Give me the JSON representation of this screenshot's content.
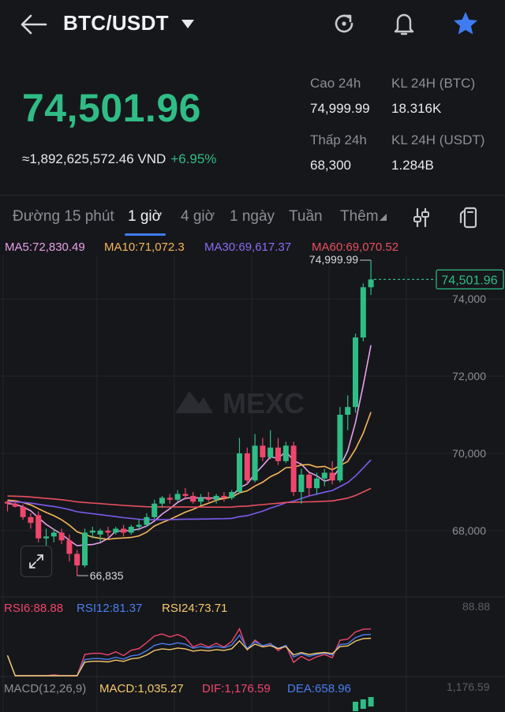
{
  "header": {
    "pair": "BTC/USDT",
    "back_icon": "arrow-left-icon",
    "dropdown_icon": "caret-down-icon",
    "refresh_icon": "refresh-icon",
    "alert_icon": "bell-icon",
    "favorite_icon": "star-icon"
  },
  "price": {
    "last": "74,501.96",
    "vnd": "≈1,892,625,572.46 VND",
    "change": "+6.95%"
  },
  "stats": {
    "high_label": "Cao 24h",
    "high_value": "74,999.99",
    "low_label": "Thấp 24h",
    "low_value": "68,300",
    "vol_btc_label": "KL 24H (BTC)",
    "vol_btc_value": "18.316K",
    "vol_usdt_label": "KL 24H  (USDT)",
    "vol_usdt_value": "1.284B"
  },
  "tabs": [
    {
      "label": "Đường 15 phút"
    },
    {
      "label": "1 giờ"
    },
    {
      "label": "4 giờ"
    },
    {
      "label": "1 ngày"
    },
    {
      "label": "Tuần"
    },
    {
      "label": "Thêm"
    }
  ],
  "tool_icons": {
    "indicator": "sliders-icon",
    "fullscreen": "rotate-screen-icon",
    "expand": "expand-icon"
  },
  "ma_legend": {
    "ma5": "MA5:72,830.49",
    "ma10": "MA10:71,072.3",
    "ma30": "MA30:69,617.37",
    "ma60": "MA60:69,070.52"
  },
  "colors": {
    "up": "#2fbd85",
    "down": "#f0466c",
    "ma5": "#e6a0e8",
    "ma10": "#f5b55a",
    "ma30": "#7c5cf0",
    "ma60": "#e8505e",
    "rsi6": "#f0466c",
    "rsi12": "#4a7ef0",
    "rsi24": "#f5c86a"
  },
  "chart_data": {
    "type": "candlestick",
    "interval": "1 giờ",
    "y_ticks": [
      "74,000",
      "72,000",
      "70,000",
      "68,000"
    ],
    "y_tick_values": [
      74000,
      72000,
      70000,
      68000
    ],
    "high_marker": "74,999.99",
    "low_marker": "66,835",
    "last_price_tag": "74,501.96",
    "watermark": "MEXC",
    "candles": [
      [
        68750,
        68780,
        68500,
        68700
      ],
      [
        68700,
        68800,
        68600,
        68620
      ],
      [
        68620,
        68680,
        68280,
        68350
      ],
      [
        68350,
        68450,
        68050,
        68200
      ],
      [
        68400,
        68500,
        67700,
        67800
      ],
      [
        67800,
        68050,
        67500,
        67850
      ],
      [
        67850,
        68050,
        67700,
        67950
      ],
      [
        67950,
        68050,
        67650,
        67750
      ],
      [
        67750,
        67900,
        67200,
        67400
      ],
      [
        67400,
        67500,
        66835,
        67100
      ],
      [
        67100,
        68050,
        67050,
        67950
      ],
      [
        67950,
        68100,
        67800,
        68000
      ],
      [
        67900,
        68050,
        67700,
        68000
      ],
      [
        68000,
        68100,
        67850,
        67950
      ],
      [
        67950,
        68100,
        67900,
        68050
      ],
      [
        68050,
        68150,
        67850,
        67950
      ],
      [
        67950,
        68150,
        67900,
        68100
      ],
      [
        68100,
        68300,
        68000,
        68150
      ],
      [
        68150,
        68450,
        68100,
        68350
      ],
      [
        68350,
        68800,
        68300,
        68700
      ],
      [
        68700,
        68900,
        68600,
        68850
      ],
      [
        68850,
        68950,
        68700,
        68800
      ],
      [
        68800,
        69050,
        68750,
        68950
      ],
      [
        68950,
        69100,
        68800,
        68900
      ],
      [
        68900,
        69000,
        68700,
        68750
      ],
      [
        68750,
        68950,
        68650,
        68850
      ],
      [
        68850,
        69000,
        68750,
        68800
      ],
      [
        68800,
        68950,
        68700,
        68900
      ],
      [
        68900,
        69000,
        68750,
        68850
      ],
      [
        68850,
        69050,
        68800,
        69000
      ],
      [
        69000,
        70400,
        68950,
        70000
      ],
      [
        70000,
        70150,
        69200,
        69300
      ],
      [
        69300,
        70500,
        69250,
        70200
      ],
      [
        70200,
        70400,
        69800,
        69900
      ],
      [
        69900,
        70600,
        69850,
        70150
      ],
      [
        70150,
        70400,
        69700,
        69800
      ],
      [
        69800,
        70300,
        69750,
        70200
      ],
      [
        70200,
        70300,
        68900,
        69000
      ],
      [
        69000,
        69600,
        68700,
        69450
      ],
      [
        69450,
        69500,
        68900,
        69100
      ],
      [
        69100,
        69500,
        68950,
        69350
      ],
      [
        69350,
        69600,
        69150,
        69500
      ],
      [
        69500,
        69800,
        69200,
        69300
      ],
      [
        69300,
        71200,
        69250,
        71000
      ],
      [
        71000,
        71500,
        70600,
        71200
      ],
      [
        71200,
        73100,
        71050,
        73000
      ],
      [
        73000,
        74400,
        72900,
        74300
      ],
      [
        74300,
        74999.99,
        74100,
        74501.96
      ]
    ]
  },
  "rsi": {
    "rsi6": "RSI6:88.88",
    "rsi12": "RSI12:81.37",
    "rsi24": "RSI24:73.71",
    "axis_top": "88.88"
  },
  "macd": {
    "label": "MACD(12,26,9)",
    "macd": "MACD:1,035.27",
    "dif": "DIF:1,176.59",
    "dea": "DEA:658.96",
    "axis_top": "1,176.59"
  }
}
